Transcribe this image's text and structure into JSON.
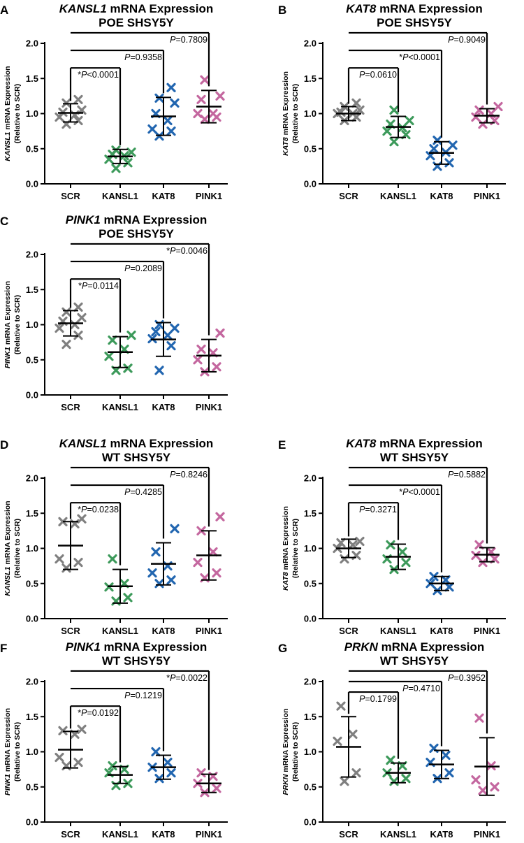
{
  "figure": {
    "title_style": "bold"
  },
  "colors": {
    "SCR": "#808080",
    "KANSL1": "#3d9a5b",
    "KAT8": "#2266b0",
    "PINK1": "#c4679f"
  },
  "chart_data": [
    {
      "type": "scatter",
      "panel": "A",
      "title_gene": "KANSL1",
      "title_rest": " mRNA Expression",
      "subtitle": "POE SHSY5Y",
      "ylabel_gene": "KANSL1",
      "ylabel_rest": " mRNA Expression",
      "ylabel2": "(Relative to SCR)",
      "ylim": [
        0,
        2.0
      ],
      "yticks": [
        "0.0",
        "0.5",
        "1.0",
        "1.5",
        "2.0"
      ],
      "categories": [
        "SCR",
        "KANSL1",
        "KAT8",
        "PINK1"
      ],
      "groups": [
        {
          "name": "SCR",
          "mean": 1.01,
          "sd": 0.13,
          "points": [
            0.85,
            0.9,
            0.95,
            0.98,
            1.02,
            1.05,
            1.15,
            1.2
          ]
        },
        {
          "name": "KANSL1",
          "mean": 0.39,
          "sd": 0.1,
          "points": [
            0.22,
            0.3,
            0.35,
            0.4,
            0.42,
            0.45,
            0.48
          ]
        },
        {
          "name": "KAT8",
          "mean": 0.96,
          "sd": 0.27,
          "points": [
            0.68,
            0.75,
            0.78,
            0.9,
            1.0,
            1.15,
            1.22,
            1.37
          ]
        },
        {
          "name": "PINK1",
          "mean": 1.1,
          "sd": 0.23,
          "points": [
            0.92,
            0.95,
            1.0,
            1.0,
            1.2,
            1.25,
            1.48
          ]
        }
      ],
      "comparisons": [
        {
          "text_star": "*",
          "text_p": "P",
          "text_rest": "<0.0001",
          "to": 1,
          "y": 1.65
        },
        {
          "text_star": "",
          "text_p": "P",
          "text_rest": "=0.9358",
          "to": 2,
          "y": 1.9
        },
        {
          "text_star": "",
          "text_p": "P",
          "text_rest": "=0.7809",
          "to": 3,
          "y": 2.15
        }
      ]
    },
    {
      "type": "scatter",
      "panel": "B",
      "title_gene": "KAT8",
      "title_rest": " mRNA Expression",
      "subtitle": "POE SHSY5Y",
      "ylabel_gene": "KAT8",
      "ylabel_rest": " mRNA Expression",
      "ylabel2": "(Relative to SCR)",
      "ylim": [
        0,
        2.0
      ],
      "yticks": [
        "0.0",
        "0.5",
        "1.0",
        "1.5",
        "2.0"
      ],
      "categories": [
        "SCR",
        "KANSL1",
        "KAT8",
        "PINK1"
      ],
      "groups": [
        {
          "name": "SCR",
          "mean": 1.0,
          "sd": 0.1,
          "points": [
            0.9,
            0.95,
            1.0,
            1.0,
            1.02,
            1.05,
            1.1,
            1.15
          ]
        },
        {
          "name": "KANSL1",
          "mean": 0.81,
          "sd": 0.15,
          "points": [
            0.6,
            0.7,
            0.75,
            0.8,
            0.85,
            0.9,
            1.05
          ]
        },
        {
          "name": "KAT8",
          "mean": 0.44,
          "sd": 0.16,
          "points": [
            0.25,
            0.3,
            0.4,
            0.45,
            0.5,
            0.55,
            0.62
          ]
        },
        {
          "name": "PINK1",
          "mean": 0.97,
          "sd": 0.1,
          "points": [
            0.85,
            0.9,
            0.95,
            1.0,
            1.05,
            1.1
          ]
        }
      ],
      "comparisons": [
        {
          "text_star": "",
          "text_p": "P",
          "text_rest": "=0.0610",
          "to": 1,
          "y": 1.65
        },
        {
          "text_star": "*",
          "text_p": "P",
          "text_rest": "<0.0001",
          "to": 2,
          "y": 1.9
        },
        {
          "text_star": "",
          "text_p": "P",
          "text_rest": "=0.9049",
          "to": 3,
          "y": 2.15
        }
      ]
    },
    {
      "type": "scatter",
      "panel": "C",
      "title_gene": "PINK1",
      "title_rest": " mRNA Expression",
      "subtitle": "POE SHSY5Y",
      "ylabel_gene": "PINK1",
      "ylabel_rest": " mRNA Expression",
      "ylabel2": "(Relative to SCR)",
      "ylim": [
        0,
        2.0
      ],
      "yticks": [
        "0.0",
        "0.5",
        "1.0",
        "1.5",
        "2.0"
      ],
      "categories": [
        "SCR",
        "KANSL1",
        "KAT8",
        "PINK1"
      ],
      "groups": [
        {
          "name": "SCR",
          "mean": 1.02,
          "sd": 0.18,
          "points": [
            0.72,
            0.85,
            0.95,
            1.0,
            1.05,
            1.1,
            1.18,
            1.25
          ]
        },
        {
          "name": "KANSL1",
          "mean": 0.61,
          "sd": 0.22,
          "points": [
            0.35,
            0.38,
            0.55,
            0.65,
            0.78,
            0.85
          ]
        },
        {
          "name": "KAT8",
          "mean": 0.79,
          "sd": 0.24,
          "points": [
            0.35,
            0.7,
            0.8,
            0.85,
            0.9,
            0.95,
            1.0
          ]
        },
        {
          "name": "PINK1",
          "mean": 0.56,
          "sd": 0.23,
          "points": [
            0.33,
            0.4,
            0.5,
            0.6,
            0.65,
            0.88
          ]
        }
      ],
      "comparisons": [
        {
          "text_star": "*",
          "text_p": "P",
          "text_rest": "=0.0114",
          "to": 1,
          "y": 1.65
        },
        {
          "text_star": "",
          "text_p": "P",
          "text_rest": "=0.2089",
          "to": 2,
          "y": 1.9
        },
        {
          "text_star": "*",
          "text_p": "P",
          "text_rest": "=0.0046",
          "to": 3,
          "y": 2.15
        }
      ]
    },
    {
      "type": "scatter",
      "panel": "D",
      "title_gene": "KANSL1",
      "title_rest": " mRNA Expression",
      "subtitle": "WT SHSY5Y",
      "ylabel_gene": "KANSL1",
      "ylabel_rest": " mRNA Expression",
      "ylabel2": "(Relative to SCR)",
      "ylim": [
        0,
        2.0
      ],
      "yticks": [
        "0.0",
        "0.5",
        "1.0",
        "1.5",
        "2.0"
      ],
      "categories": [
        "SCR",
        "KANSL1",
        "KAT8",
        "PINK1"
      ],
      "groups": [
        {
          "name": "SCR",
          "mean": 1.04,
          "sd": 0.34,
          "points": [
            0.72,
            0.8,
            0.85,
            1.35,
            1.38,
            1.42
          ]
        },
        {
          "name": "KANSL1",
          "mean": 0.46,
          "sd": 0.24,
          "points": [
            0.25,
            0.3,
            0.45,
            0.5,
            0.85
          ]
        },
        {
          "name": "KAT8",
          "mean": 0.78,
          "sd": 0.3,
          "points": [
            0.5,
            0.55,
            0.65,
            0.75,
            0.95,
            1.28
          ]
        },
        {
          "name": "PINK1",
          "mean": 0.9,
          "sd": 0.35,
          "points": [
            0.58,
            0.65,
            0.8,
            0.95,
            1.25,
            1.45
          ]
        }
      ],
      "comparisons": [
        {
          "text_star": "*",
          "text_p": "P",
          "text_rest": "=0.0238",
          "to": 1,
          "y": 1.65
        },
        {
          "text_star": "",
          "text_p": "P",
          "text_rest": "=0.4285",
          "to": 2,
          "y": 1.9
        },
        {
          "text_star": "",
          "text_p": "P",
          "text_rest": "=0.8246",
          "to": 3,
          "y": 2.15
        }
      ]
    },
    {
      "type": "scatter",
      "panel": "E",
      "title_gene": "KAT8",
      "title_rest": " mRNA Expression",
      "subtitle": "WT SHSY5Y",
      "ylabel_gene": "KAT8",
      "ylabel_rest": " mRNA Expression",
      "ylabel2": "(Relative to SCR)",
      "ylim": [
        0,
        2.0
      ],
      "yticks": [
        "0.0",
        "0.5",
        "1.0",
        "1.5",
        "2.0"
      ],
      "categories": [
        "SCR",
        "KANSL1",
        "KAT8",
        "PINK1"
      ],
      "groups": [
        {
          "name": "SCR",
          "mean": 1.0,
          "sd": 0.13,
          "points": [
            0.85,
            0.9,
            1.0,
            1.05,
            1.08,
            1.1
          ]
        },
        {
          "name": "KANSL1",
          "mean": 0.88,
          "sd": 0.18,
          "points": [
            0.7,
            0.8,
            0.85,
            0.95,
            1.05
          ]
        },
        {
          "name": "KAT8",
          "mean": 0.5,
          "sd": 0.1,
          "points": [
            0.4,
            0.45,
            0.5,
            0.55,
            0.6
          ]
        },
        {
          "name": "PINK1",
          "mean": 0.91,
          "sd": 0.1,
          "points": [
            0.8,
            0.85,
            0.9,
            0.95,
            1.05
          ]
        }
      ],
      "comparisons": [
        {
          "text_star": "",
          "text_p": "P",
          "text_rest": "=0.3271",
          "to": 1,
          "y": 1.65
        },
        {
          "text_star": "*",
          "text_p": "P",
          "text_rest": "<0.0001",
          "to": 2,
          "y": 1.9
        },
        {
          "text_star": "",
          "text_p": "P",
          "text_rest": "=0.5882",
          "to": 3,
          "y": 2.15
        }
      ]
    },
    {
      "type": "scatter",
      "panel": "F",
      "title_gene": "PINK1",
      "title_rest": " mRNA Expression",
      "subtitle": "WT SHSY5Y",
      "ylabel_gene": "PINK1",
      "ylabel_rest": " mRNA Expression",
      "ylabel2": "(Relative to SCR)",
      "ylim": [
        0,
        2.0
      ],
      "yticks": [
        "0.0",
        "0.5",
        "1.0",
        "1.5",
        "2.0"
      ],
      "categories": [
        "SCR",
        "KANSL1",
        "KAT8",
        "PINK1"
      ],
      "groups": [
        {
          "name": "SCR",
          "mean": 1.03,
          "sd": 0.26,
          "points": [
            0.8,
            0.85,
            0.92,
            1.25,
            1.3,
            1.32
          ]
        },
        {
          "name": "KANSL1",
          "mean": 0.67,
          "sd": 0.12,
          "points": [
            0.52,
            0.55,
            0.7,
            0.75,
            0.8
          ]
        },
        {
          "name": "KAT8",
          "mean": 0.78,
          "sd": 0.17,
          "points": [
            0.62,
            0.7,
            0.78,
            0.85,
            1.0
          ]
        },
        {
          "name": "PINK1",
          "mean": 0.55,
          "sd": 0.13,
          "points": [
            0.42,
            0.48,
            0.55,
            0.65,
            0.7
          ]
        }
      ],
      "comparisons": [
        {
          "text_star": "*",
          "text_p": "P",
          "text_rest": "=0.0192",
          "to": 1,
          "y": 1.65
        },
        {
          "text_star": "",
          "text_p": "P",
          "text_rest": "=0.1219",
          "to": 2,
          "y": 1.9
        },
        {
          "text_star": "*",
          "text_p": "P",
          "text_rest": "=0.0022",
          "to": 3,
          "y": 2.15
        }
      ]
    },
    {
      "type": "scatter",
      "panel": "G",
      "title_gene": "PRKN",
      "title_rest": " mRNA Expression",
      "subtitle": "WT SHSY5Y",
      "ylabel_gene": "PRKN",
      "ylabel_rest": " mRNA Expression",
      "ylabel2": "(Relative to SCR)",
      "ylim": [
        0,
        2.0
      ],
      "yticks": [
        "0.0",
        "0.5",
        "1.0",
        "1.5",
        "2.0"
      ],
      "categories": [
        "SCR",
        "KANSL1",
        "KAT8",
        "PINK1"
      ],
      "groups": [
        {
          "name": "SCR",
          "mean": 1.07,
          "sd": 0.43,
          "points": [
            0.58,
            0.7,
            1.15,
            1.25,
            1.65
          ]
        },
        {
          "name": "KANSL1",
          "mean": 0.7,
          "sd": 0.14,
          "points": [
            0.58,
            0.62,
            0.7,
            0.8,
            0.88
          ]
        },
        {
          "name": "KAT8",
          "mean": 0.82,
          "sd": 0.2,
          "points": [
            0.62,
            0.7,
            0.85,
            0.95,
            1.05
          ]
        },
        {
          "name": "PINK1",
          "mean": 0.79,
          "sd": 0.41,
          "points": [
            0.45,
            0.5,
            0.6,
            0.8,
            1.48
          ]
        }
      ],
      "comparisons": [
        {
          "text_star": "",
          "text_p": "P",
          "text_rest": "=0.1799",
          "to": 1,
          "y": 1.85
        },
        {
          "text_star": "",
          "text_p": "P",
          "text_rest": "=0.4710",
          "to": 2,
          "y": 2.0
        },
        {
          "text_star": "",
          "text_p": "P",
          "text_rest": "=0.3952",
          "to": 3,
          "y": 2.15
        }
      ]
    }
  ]
}
